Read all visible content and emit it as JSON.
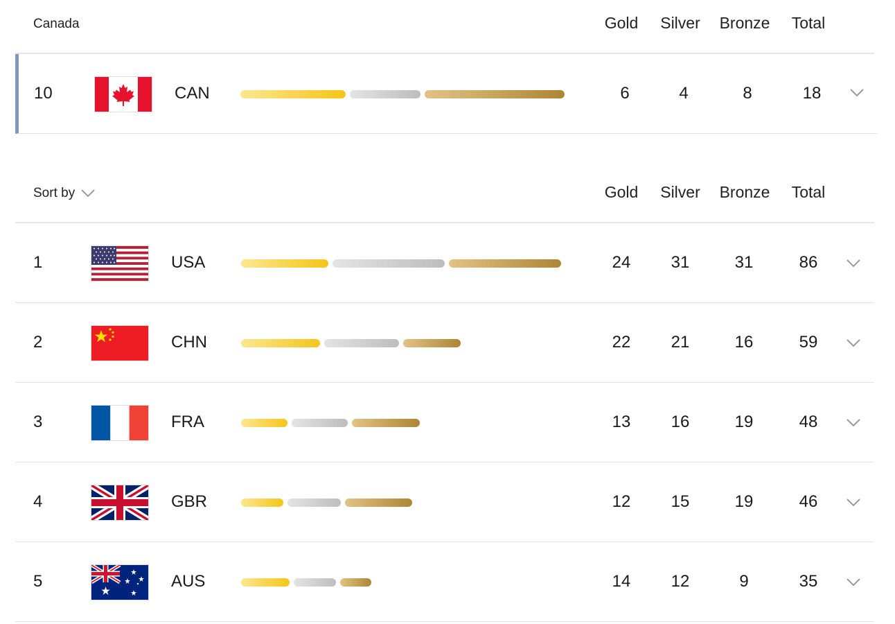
{
  "featured_section": {
    "title": "Canada",
    "columns": {
      "gold": "Gold",
      "silver": "Silver",
      "bronze": "Bronze",
      "total": "Total"
    },
    "row": {
      "rank": "10",
      "code": "CAN",
      "flag": "canada-flag-icon",
      "gold": "6",
      "silver": "4",
      "bronze": "8",
      "total": "18"
    }
  },
  "ranking_section": {
    "sort_label": "Sort by",
    "columns": {
      "gold": "Gold",
      "silver": "Silver",
      "bronze": "Bronze",
      "total": "Total"
    },
    "rows": [
      {
        "rank": "1",
        "code": "USA",
        "flag": "usa-flag-icon",
        "gold": "24",
        "silver": "31",
        "bronze": "31",
        "total": "86"
      },
      {
        "rank": "2",
        "code": "CHN",
        "flag": "china-flag-icon",
        "gold": "22",
        "silver": "21",
        "bronze": "16",
        "total": "59"
      },
      {
        "rank": "3",
        "code": "FRA",
        "flag": "france-flag-icon",
        "gold": "13",
        "silver": "16",
        "bronze": "19",
        "total": "48"
      },
      {
        "rank": "4",
        "code": "GBR",
        "flag": "uk-flag-icon",
        "gold": "12",
        "silver": "15",
        "bronze": "19",
        "total": "46"
      },
      {
        "rank": "5",
        "code": "AUS",
        "flag": "australia-flag-icon",
        "gold": "14",
        "silver": "12",
        "bronze": "9",
        "total": "35"
      }
    ]
  },
  "colors": {
    "gold": "#f5c518",
    "silver": "#bdbdbd",
    "bronze": "#ad8634",
    "featured_accent": "#7f97bf"
  }
}
